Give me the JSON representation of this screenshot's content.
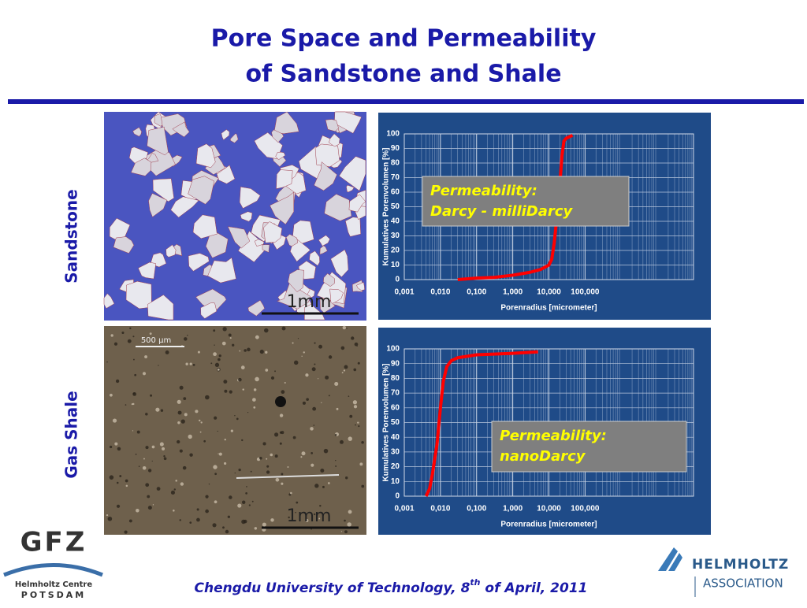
{
  "title": [
    "Pore Space and Permeability",
    "of Sandstone and Shale"
  ],
  "row_labels": [
    "Sandstone",
    "Gas Shale"
  ],
  "photo_labels": [
    "1mm",
    "500 µm",
    "1mm"
  ],
  "footer": [
    "Chengdu University of Technology, 8",
    "th",
    " of April, 2011"
  ],
  "logos": {
    "left": [
      "GFZ",
      "Helmholtz Centre",
      "POTSDAM"
    ],
    "right": [
      "HELMHOLTZ",
      "ASSOCIATION"
    ]
  },
  "chart_data": [
    {
      "type": "line",
      "x_label": "Porenradius [micrometer]",
      "y_label": "Kumulatives Porenvolumen [%]",
      "annotation": [
        "Permeability:",
        "Darcy - milliDarcy"
      ],
      "xlog": true,
      "grid": true,
      "xlim": [
        0.001,
        100000
      ],
      "ylim": [
        0,
        100
      ],
      "xticks": [
        {
          "value": 0.001,
          "label": "0,001"
        },
        {
          "value": 0.01,
          "label": "0,010"
        },
        {
          "value": 0.1,
          "label": "0,100"
        },
        {
          "value": 1,
          "label": "1,000"
        },
        {
          "value": 10,
          "label": "10,000"
        },
        {
          "value": 100,
          "label": "100,000"
        }
      ],
      "yticks": [
        0,
        10,
        20,
        30,
        40,
        50,
        60,
        70,
        80,
        90,
        100
      ],
      "series": [
        {
          "color": "#ff0000",
          "x": [
            0.03,
            0.1,
            0.3,
            1,
            3,
            6,
            10,
            12,
            14,
            17,
            20,
            23,
            26,
            30,
            45
          ],
          "values": [
            0,
            1,
            1.5,
            3,
            5,
            7,
            10,
            14,
            25,
            45,
            65,
            85,
            95,
            97,
            99
          ]
        }
      ]
    },
    {
      "type": "line",
      "x_label": "Porenradius [micrometer]",
      "y_label": "Kumulatives Porenvolumen [%]",
      "annotation": [
        "Permeability:",
        "nanoDarcy"
      ],
      "xlog": true,
      "grid": true,
      "xlim": [
        0.001,
        100000
      ],
      "ylim": [
        0,
        100
      ],
      "xticks": [
        {
          "value": 0.001,
          "label": "0,001"
        },
        {
          "value": 0.01,
          "label": "0,010"
        },
        {
          "value": 0.1,
          "label": "0,100"
        },
        {
          "value": 1,
          "label": "1,000"
        },
        {
          "value": 10,
          "label": "10,000"
        },
        {
          "value": 100,
          "label": "100,000"
        }
      ],
      "yticks": [
        0,
        10,
        20,
        30,
        40,
        50,
        60,
        70,
        80,
        90,
        100
      ],
      "series": [
        {
          "color": "#ff0000",
          "x": [
            0.004,
            0.005,
            0.006,
            0.008,
            0.01,
            0.012,
            0.015,
            0.02,
            0.03,
            0.1,
            1,
            5
          ],
          "values": [
            0,
            5,
            15,
            35,
            60,
            78,
            88,
            92,
            94,
            96,
            97,
            98
          ]
        }
      ]
    }
  ]
}
